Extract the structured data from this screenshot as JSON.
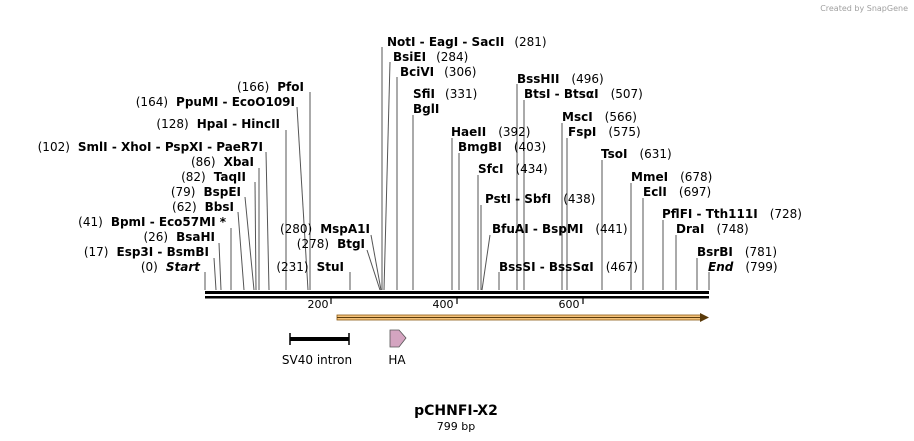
{
  "credit": "Created by SnapGene",
  "plasmid": {
    "name": "pCHNFI-X2",
    "length": "799 bp"
  },
  "ruler": {
    "ticks": [
      "200",
      "400",
      "600"
    ]
  },
  "features": [
    {
      "name": "SV40 intron",
      "type": "intron"
    },
    {
      "name": "HA",
      "type": "tag"
    }
  ],
  "sites": [
    {
      "pos": "(281)",
      "names": [
        "NotI",
        "EagI",
        "SacII"
      ]
    },
    {
      "pos": "(284)",
      "names": [
        "BsiEI"
      ]
    },
    {
      "pos": "(306)",
      "names": [
        "BciVI"
      ]
    },
    {
      "pos": "(331)",
      "names": [
        "SfiI"
      ]
    },
    {
      "pos": "",
      "names": [
        "BglI"
      ]
    },
    {
      "pos": "(166)",
      "names": [
        "PfoI"
      ]
    },
    {
      "pos": "(164)",
      "names": [
        "PpuMI",
        "EcoO109I"
      ]
    },
    {
      "pos": "(128)",
      "names": [
        "HpaI",
        "HincII"
      ]
    },
    {
      "pos": "(102)",
      "names": [
        "SmlI",
        "XhoI",
        "PspXI",
        "PaeR7I"
      ]
    },
    {
      "pos": "(86)",
      "names": [
        "XbaI"
      ]
    },
    {
      "pos": "(82)",
      "names": [
        "TaqII"
      ]
    },
    {
      "pos": "(79)",
      "names": [
        "BspEI"
      ]
    },
    {
      "pos": "(62)",
      "names": [
        "BbsI"
      ]
    },
    {
      "pos": "(41)",
      "names": [
        "BpmI",
        "Eco57MI *"
      ]
    },
    {
      "pos": "(26)",
      "names": [
        "BsaHI"
      ]
    },
    {
      "pos": "(17)",
      "names": [
        "Esp3I",
        "BsmBI"
      ]
    },
    {
      "pos": "(0)",
      "names": [
        "Start"
      ]
    },
    {
      "pos": "(280)",
      "names": [
        "MspA1I"
      ]
    },
    {
      "pos": "(278)",
      "names": [
        "BtgI"
      ]
    },
    {
      "pos": "(231)",
      "names": [
        "StuI"
      ]
    },
    {
      "pos": "(496)",
      "names": [
        "BssHII"
      ]
    },
    {
      "pos": "(507)",
      "names": [
        "BtsI",
        "BtsαI"
      ]
    },
    {
      "pos": "(392)",
      "names": [
        "HaeII"
      ]
    },
    {
      "pos": "(403)",
      "names": [
        "BmgBI"
      ]
    },
    {
      "pos": "(434)",
      "names": [
        "SfcI"
      ]
    },
    {
      "pos": "(438)",
      "names": [
        "PstI",
        "SbfI"
      ]
    },
    {
      "pos": "(441)",
      "names": [
        "BfuAI",
        "BspMI"
      ]
    },
    {
      "pos": "(467)",
      "names": [
        "BssSI",
        "BssSαI"
      ]
    },
    {
      "pos": "(566)",
      "names": [
        "MscI"
      ]
    },
    {
      "pos": "(575)",
      "names": [
        "FspI"
      ]
    },
    {
      "pos": "(631)",
      "names": [
        "TsoI"
      ]
    },
    {
      "pos": "(678)",
      "names": [
        "MmeI"
      ]
    },
    {
      "pos": "(697)",
      "names": [
        "EclI"
      ]
    },
    {
      "pos": "(728)",
      "names": [
        "PflFI",
        "Tth111I"
      ]
    },
    {
      "pos": "(748)",
      "names": [
        "DraI"
      ]
    },
    {
      "pos": "(781)",
      "names": [
        "BsrBI"
      ]
    },
    {
      "pos": "(799)",
      "names": [
        "End"
      ]
    }
  ],
  "colors": {
    "orf": "#f5c27a",
    "orf_line": "#8a5a14",
    "ha": "#d4a4c0"
  }
}
